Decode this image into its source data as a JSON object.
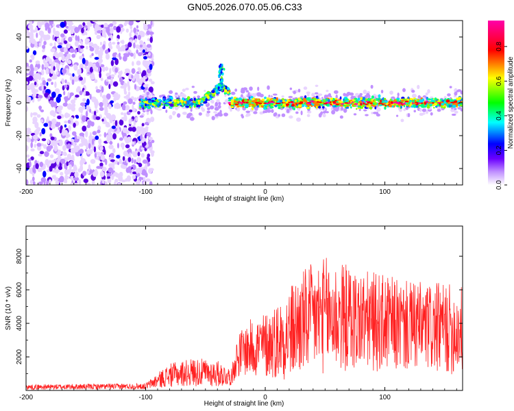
{
  "title": "GN05.2026.070.05.06.C33",
  "chart_data": [
    {
      "type": "heatmap",
      "xlabel": "Height of straight line (km)",
      "ylabel": "Frequency (Hz)",
      "xlim": [
        -200,
        165
      ],
      "ylim": [
        -50,
        50
      ],
      "xticks": [
        -200,
        -100,
        0,
        100
      ],
      "yticks": [
        -40,
        -20,
        0,
        20,
        40
      ],
      "colorbar": {
        "label": "Normalized spectral amplitude",
        "range": [
          0,
          0.95
        ],
        "ticks": [
          0.0,
          0.2,
          0.4,
          0.6,
          0.8
        ],
        "colormap": [
          "#ffffff",
          "#6a00ff",
          "#0000ff",
          "#00ffff",
          "#00ff00",
          "#ffff00",
          "#ff0000",
          "#ff00aa"
        ]
      },
      "features": {
        "noise_region_x": [
          -200,
          -100
        ],
        "signal_start_x": -105,
        "signal_freq_hz": 0,
        "signal_peak_x": -37,
        "signal_peak_freq_hz": 22
      }
    },
    {
      "type": "line",
      "xlabel": "Height of straight line (km)",
      "ylabel": "SNR (10 * v/v)",
      "xlim": [
        -200,
        165
      ],
      "ylim": [
        0,
        9800
      ],
      "xticks": [
        -200,
        -100,
        0,
        100
      ],
      "yticks": [
        2000,
        4000,
        6000,
        8000
      ],
      "series": [
        {
          "name": "SNR",
          "color": "#ff2020",
          "x": [
            -200,
            -100,
            -90,
            -80,
            -60,
            -40,
            -28,
            -25,
            -20,
            -10,
            0,
            10,
            20,
            30,
            40,
            50,
            60,
            70,
            80,
            90,
            100,
            110,
            120,
            130,
            140,
            150,
            160,
            165
          ],
          "mean": [
            200,
            250,
            600,
            900,
            1100,
            1000,
            800,
            1800,
            2300,
            2600,
            2700,
            3000,
            3400,
            4000,
            4300,
            4500,
            4400,
            4300,
            4200,
            4100,
            4000,
            3900,
            3800,
            3800,
            3700,
            3700,
            3600,
            3600
          ],
          "amplitude": [
            150,
            180,
            450,
            700,
            850,
            800,
            500,
            1100,
            1400,
            1800,
            2000,
            2300,
            2800,
            3200,
            3300,
            3500,
            3400,
            3200,
            3000,
            3000,
            2900,
            2800,
            2700,
            2700,
            2700,
            2700,
            2700,
            2700
          ]
        }
      ]
    }
  ]
}
